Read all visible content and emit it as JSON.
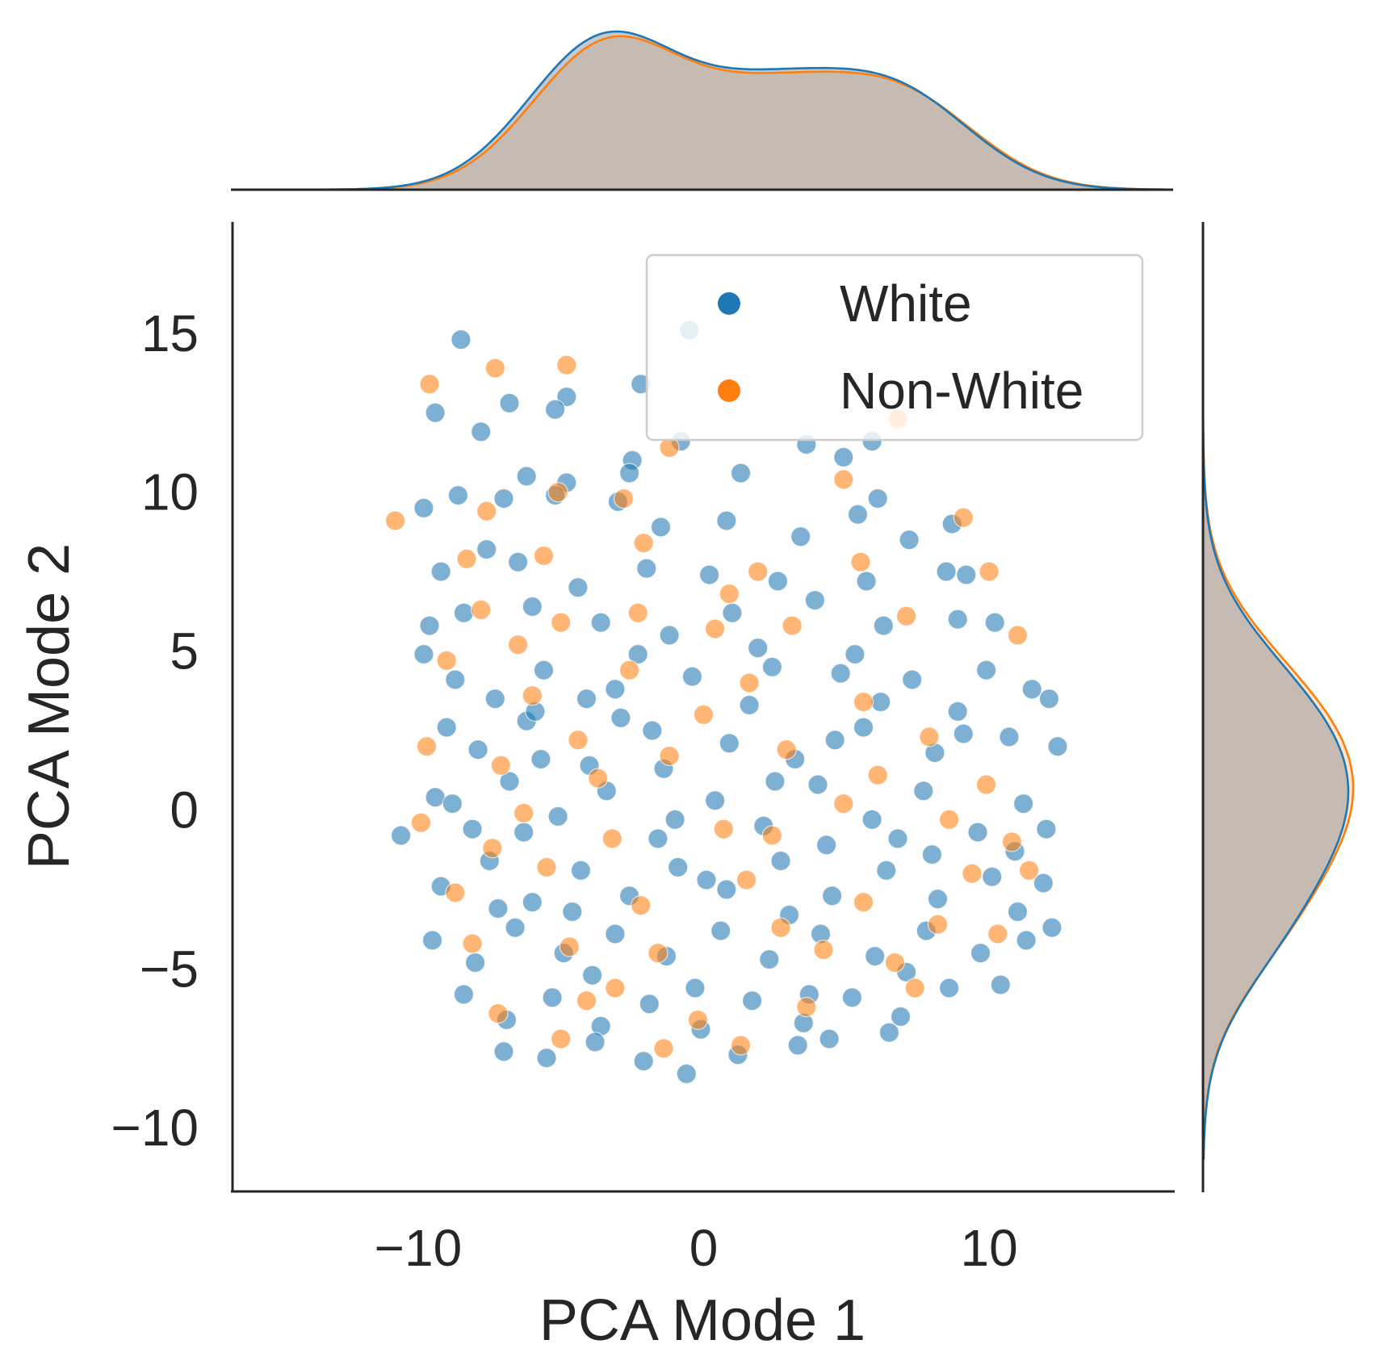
{
  "chart_data": {
    "type": "scatter",
    "title": "",
    "xlabel": "PCA Mode 1",
    "ylabel": "PCA Mode 2",
    "xlim": [
      -16.5,
      16.5
    ],
    "ylim": [
      -12,
      18.5
    ],
    "xticks": [
      -10,
      0,
      10
    ],
    "yticks": [
      -10,
      -5,
      0,
      5,
      10,
      15
    ],
    "xtick_labels": [
      "−10",
      "0",
      "10"
    ],
    "ytick_labels": [
      "−10",
      "−5",
      "0",
      "5",
      "10",
      "15"
    ],
    "grid": false,
    "legend": {
      "placement": "upper-right"
    },
    "marginals": {
      "x": {
        "type": "kde",
        "density_fill": true
      },
      "y": {
        "type": "kde",
        "density_fill": true
      }
    },
    "series": [
      {
        "name": "White",
        "color": "#1f77b4",
        "distribution": {
          "x_mean": 0.6,
          "x_std": 5.1,
          "y_mean": -0.5,
          "y_std": 4.0
        },
        "points": [
          [
            -8.5,
            14.8
          ],
          [
            -0.5,
            15.1
          ],
          [
            -2.2,
            13.4
          ],
          [
            -4.8,
            13.0
          ],
          [
            -9.4,
            12.5
          ],
          [
            -6.8,
            12.8
          ],
          [
            -7.8,
            11.9
          ],
          [
            -5.2,
            12.6
          ],
          [
            -2.5,
            11.0
          ],
          [
            -6.2,
            10.5
          ],
          [
            -4.8,
            10.3
          ],
          [
            -2.6,
            10.6
          ],
          [
            -0.8,
            11.6
          ],
          [
            1.3,
            10.6
          ],
          [
            3.6,
            11.5
          ],
          [
            4.9,
            11.1
          ],
          [
            5.9,
            11.6
          ],
          [
            -9.8,
            9.5
          ],
          [
            -8.6,
            9.9
          ],
          [
            -7.0,
            9.8
          ],
          [
            -5.2,
            9.9
          ],
          [
            -3.0,
            9.7
          ],
          [
            -1.5,
            8.9
          ],
          [
            0.8,
            9.1
          ],
          [
            3.4,
            8.6
          ],
          [
            5.4,
            9.3
          ],
          [
            6.1,
            9.8
          ],
          [
            8.7,
            9.0
          ],
          [
            -9.2,
            7.5
          ],
          [
            -7.6,
            8.2
          ],
          [
            -6.5,
            7.8
          ],
          [
            -4.4,
            7.0
          ],
          [
            -2.0,
            7.6
          ],
          [
            0.2,
            7.4
          ],
          [
            2.6,
            7.2
          ],
          [
            5.7,
            7.2
          ],
          [
            7.2,
            8.5
          ],
          [
            8.5,
            7.5
          ],
          [
            9.2,
            7.4
          ],
          [
            -9.6,
            5.8
          ],
          [
            -8.4,
            6.2
          ],
          [
            -6.0,
            6.4
          ],
          [
            -3.6,
            5.9
          ],
          [
            -1.2,
            5.5
          ],
          [
            1.0,
            6.2
          ],
          [
            3.9,
            6.6
          ],
          [
            6.3,
            5.8
          ],
          [
            8.9,
            6.0
          ],
          [
            10.2,
            5.9
          ],
          [
            -9.8,
            4.9
          ],
          [
            -8.7,
            4.1
          ],
          [
            -7.3,
            3.5
          ],
          [
            -5.6,
            4.4
          ],
          [
            -3.1,
            3.8
          ],
          [
            -0.4,
            4.2
          ],
          [
            2.4,
            4.5
          ],
          [
            4.8,
            4.3
          ],
          [
            7.3,
            4.1
          ],
          [
            9.9,
            4.4
          ],
          [
            11.5,
            3.8
          ],
          [
            12.1,
            3.5
          ],
          [
            -9.0,
            2.6
          ],
          [
            -7.9,
            1.9
          ],
          [
            -6.2,
            2.8
          ],
          [
            -4.0,
            1.4
          ],
          [
            -1.8,
            2.5
          ],
          [
            0.9,
            2.1
          ],
          [
            3.2,
            1.6
          ],
          [
            5.6,
            2.6
          ],
          [
            8.1,
            1.8
          ],
          [
            10.7,
            2.3
          ],
          [
            12.4,
            2.0
          ],
          [
            -10.6,
            -0.8
          ],
          [
            -9.4,
            0.4
          ],
          [
            -8.1,
            -0.6
          ],
          [
            -6.8,
            0.9
          ],
          [
            -5.1,
            -0.2
          ],
          [
            -3.4,
            0.6
          ],
          [
            -1.6,
            -0.9
          ],
          [
            0.4,
            0.3
          ],
          [
            2.1,
            -0.5
          ],
          [
            4.0,
            0.8
          ],
          [
            5.9,
            -0.3
          ],
          [
            7.7,
            0.6
          ],
          [
            9.6,
            -0.7
          ],
          [
            11.2,
            0.2
          ],
          [
            12.0,
            -0.6
          ],
          [
            -9.2,
            -2.4
          ],
          [
            -7.5,
            -1.6
          ],
          [
            -6.0,
            -2.9
          ],
          [
            -4.3,
            -1.9
          ],
          [
            -2.6,
            -2.7
          ],
          [
            -0.9,
            -1.8
          ],
          [
            0.8,
            -2.5
          ],
          [
            2.7,
            -1.6
          ],
          [
            4.5,
            -2.7
          ],
          [
            6.4,
            -1.9
          ],
          [
            8.2,
            -2.8
          ],
          [
            10.1,
            -2.1
          ],
          [
            11.9,
            -2.3
          ],
          [
            -9.5,
            -4.1
          ],
          [
            -8.0,
            -4.8
          ],
          [
            -6.6,
            -3.7
          ],
          [
            -4.9,
            -4.5
          ],
          [
            -3.1,
            -3.9
          ],
          [
            -1.3,
            -4.6
          ],
          [
            0.6,
            -3.8
          ],
          [
            2.3,
            -4.7
          ],
          [
            4.1,
            -3.9
          ],
          [
            6.0,
            -4.6
          ],
          [
            7.8,
            -3.8
          ],
          [
            9.7,
            -4.5
          ],
          [
            11.3,
            -4.1
          ],
          [
            12.2,
            -3.7
          ],
          [
            -8.4,
            -5.8
          ],
          [
            -6.9,
            -6.6
          ],
          [
            -5.3,
            -5.9
          ],
          [
            -3.6,
            -6.8
          ],
          [
            -1.9,
            -6.1
          ],
          [
            -0.1,
            -6.9
          ],
          [
            1.7,
            -6.0
          ],
          [
            3.5,
            -6.7
          ],
          [
            5.2,
            -5.9
          ],
          [
            6.9,
            -6.5
          ],
          [
            8.6,
            -5.6
          ],
          [
            10.4,
            -5.5
          ],
          [
            -7.0,
            -7.6
          ],
          [
            -5.5,
            -7.8
          ],
          [
            -3.8,
            -7.3
          ],
          [
            -2.1,
            -7.9
          ],
          [
            -0.6,
            -8.3
          ],
          [
            1.2,
            -7.7
          ],
          [
            3.3,
            -7.4
          ],
          [
            4.4,
            -7.2
          ],
          [
            6.5,
            -7.0
          ],
          [
            -5.9,
            3.1
          ],
          [
            -4.6,
            -3.2
          ],
          [
            -2.9,
            2.9
          ],
          [
            -1.0,
            -0.3
          ],
          [
            1.6,
            3.3
          ],
          [
            3.0,
            -3.3
          ],
          [
            4.6,
            2.2
          ],
          [
            6.8,
            -0.9
          ],
          [
            8.9,
            3.1
          ],
          [
            10.9,
            -1.3
          ],
          [
            -8.8,
            0.2
          ],
          [
            -7.2,
            -3.1
          ],
          [
            -5.7,
            1.6
          ],
          [
            -3.9,
            -5.2
          ],
          [
            -2.3,
            4.9
          ],
          [
            -0.3,
            -5.6
          ],
          [
            1.9,
            5.1
          ],
          [
            3.7,
            -5.8
          ],
          [
            5.3,
            4.9
          ],
          [
            7.1,
            -5.1
          ],
          [
            9.1,
            2.4
          ],
          [
            11.0,
            -3.2
          ],
          [
            -6.3,
            -0.7
          ],
          [
            -4.1,
            3.5
          ],
          [
            -1.4,
            1.3
          ],
          [
            0.1,
            -2.2
          ],
          [
            2.5,
            0.9
          ],
          [
            4.3,
            -1.1
          ],
          [
            6.2,
            3.4
          ],
          [
            8.0,
            -1.4
          ]
        ]
      },
      {
        "name": "Non-White",
        "color": "#ff7f0e",
        "distribution": {
          "x_mean": 0.5,
          "x_std": 5.0,
          "y_mean": -0.4,
          "y_std": 3.8
        },
        "points": [
          [
            -9.6,
            13.4
          ],
          [
            -7.3,
            13.9
          ],
          [
            -4.8,
            14.0
          ],
          [
            -1.2,
            11.4
          ],
          [
            6.8,
            12.3
          ],
          [
            -10.8,
            9.1
          ],
          [
            -7.6,
            9.4
          ],
          [
            -5.1,
            10.0
          ],
          [
            -2.8,
            9.8
          ],
          [
            4.9,
            10.4
          ],
          [
            9.1,
            9.2
          ],
          [
            -8.3,
            7.9
          ],
          [
            -5.6,
            8.0
          ],
          [
            -2.1,
            8.4
          ],
          [
            1.9,
            7.5
          ],
          [
            5.5,
            7.8
          ],
          [
            10.0,
            7.5
          ],
          [
            -7.8,
            6.3
          ],
          [
            -5.0,
            5.9
          ],
          [
            -2.3,
            6.2
          ],
          [
            0.4,
            5.7
          ],
          [
            3.1,
            5.8
          ],
          [
            7.1,
            6.1
          ],
          [
            11.0,
            5.5
          ],
          [
            -9.0,
            4.7
          ],
          [
            -6.0,
            3.6
          ],
          [
            -2.6,
            4.4
          ],
          [
            1.6,
            4.0
          ],
          [
            5.6,
            3.4
          ],
          [
            -9.7,
            2.0
          ],
          [
            -7.1,
            1.4
          ],
          [
            -4.4,
            2.2
          ],
          [
            -1.2,
            1.7
          ],
          [
            2.9,
            1.9
          ],
          [
            7.9,
            2.3
          ],
          [
            -9.9,
            -0.4
          ],
          [
            -6.3,
            -0.1
          ],
          [
            -3.2,
            -0.9
          ],
          [
            0.7,
            -0.6
          ],
          [
            4.9,
            0.2
          ],
          [
            8.6,
            -0.3
          ],
          [
            10.8,
            -1.0
          ],
          [
            -8.7,
            -2.6
          ],
          [
            -5.5,
            -1.8
          ],
          [
            -2.2,
            -3.0
          ],
          [
            1.5,
            -2.2
          ],
          [
            5.6,
            -2.9
          ],
          [
            9.4,
            -2.0
          ],
          [
            11.4,
            -1.9
          ],
          [
            -8.1,
            -4.2
          ],
          [
            -4.7,
            -4.3
          ],
          [
            -1.6,
            -4.5
          ],
          [
            2.7,
            -3.7
          ],
          [
            6.7,
            -4.8
          ],
          [
            10.3,
            -3.9
          ],
          [
            -7.2,
            -6.4
          ],
          [
            -3.1,
            -5.6
          ],
          [
            -0.2,
            -6.6
          ],
          [
            3.6,
            -6.2
          ],
          [
            7.4,
            -5.6
          ],
          [
            -5.0,
            -7.2
          ],
          [
            -1.4,
            -7.5
          ],
          [
            1.3,
            -7.4
          ],
          [
            -6.5,
            5.2
          ],
          [
            -3.7,
            1.0
          ],
          [
            0.0,
            3.0
          ],
          [
            2.4,
            -0.8
          ],
          [
            6.1,
            1.1
          ],
          [
            8.2,
            -3.6
          ],
          [
            -7.4,
            -1.2
          ],
          [
            -4.1,
            -6.0
          ],
          [
            0.9,
            6.8
          ],
          [
            4.2,
            -4.4
          ],
          [
            9.9,
            0.8
          ]
        ]
      }
    ]
  }
}
